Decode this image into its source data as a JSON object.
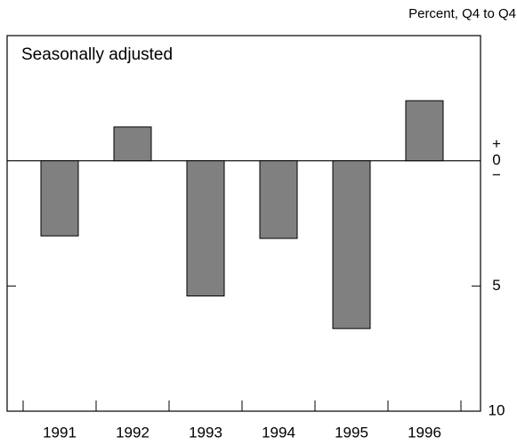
{
  "chart_data": {
    "type": "bar",
    "unit_label": "Percent, Q4 to Q4",
    "annotation": "Seasonally adjusted",
    "categories": [
      "1991",
      "1992",
      "1993",
      "1994",
      "1995",
      "1996"
    ],
    "values": [
      -3.0,
      1.35,
      -5.4,
      -3.1,
      -6.7,
      2.4
    ],
    "color": "#808080",
    "ylim": [
      -10,
      5
    ],
    "yticks": [
      {
        "value": 0,
        "label": "0"
      },
      {
        "value": -5,
        "label": "5"
      },
      {
        "value": -10,
        "label": "10"
      }
    ],
    "sign_labels": {
      "plus": "+",
      "minus": "−"
    }
  }
}
